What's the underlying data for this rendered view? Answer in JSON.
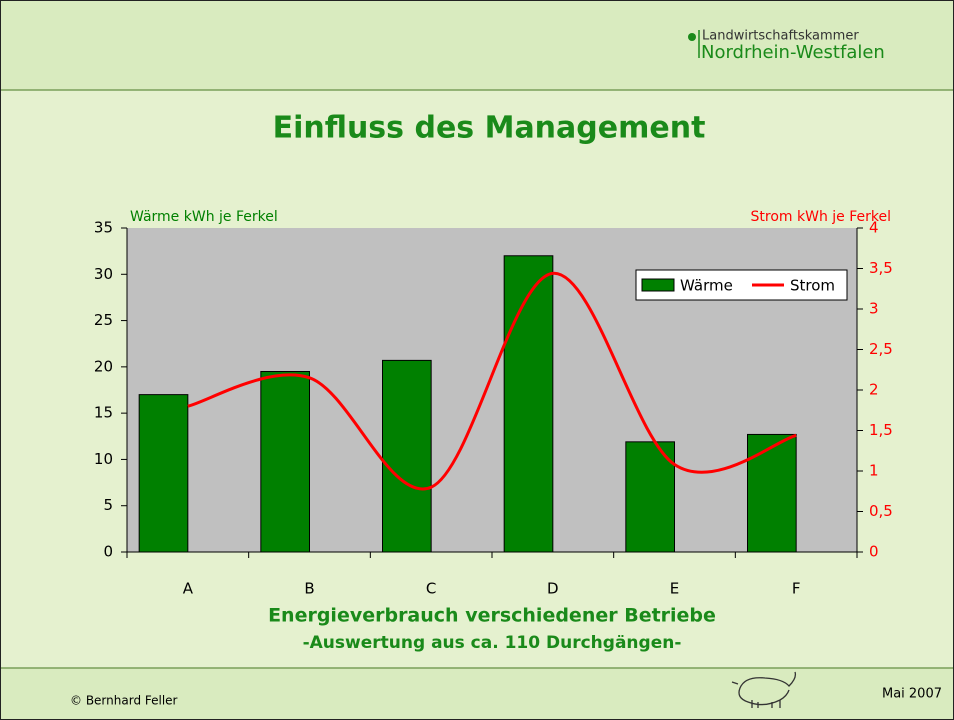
{
  "header": {
    "logo_line1": "Landwirtschaftskammer",
    "logo_line2": "Nordrhein-Westfalen"
  },
  "chart_data": {
    "type": "bar",
    "title": "Einfluss des Management",
    "y_label": "Wärme kWh je Ferkel",
    "y2_label": "Strom kWh je Ferkel",
    "x_label": "Energieverbrauch verschiedener Betriebe",
    "subtitle": "-Auswertung aus ca. 110 Durchgängen-",
    "categories": [
      "A",
      "B",
      "C",
      "D",
      "E",
      "F"
    ],
    "series": [
      {
        "name": "Wärme",
        "color": "#008000",
        "type": "bar",
        "values": [
          17,
          19.5,
          20.7,
          32,
          11.9,
          12.7
        ]
      },
      {
        "name": "Strom",
        "color": "#ff0000",
        "type": "line",
        "axis": "y2",
        "values": [
          1.8,
          2.15,
          0.8,
          3.44,
          1.08,
          1.44
        ]
      }
    ],
    "ylim": [
      0,
      35
    ],
    "yticks": [
      0,
      5,
      10,
      15,
      20,
      25,
      30,
      35
    ],
    "y2lim": [
      0,
      4
    ],
    "y2ticks": [
      0,
      {
        "value": 0.5,
        "label": "0,5"
      },
      1,
      {
        "value": 1.5,
        "label": "1,5"
      },
      2,
      {
        "value": 2.5,
        "label": "2,5"
      },
      3,
      {
        "value": 3.5,
        "label": "3,5"
      },
      4
    ],
    "plot_background": "#c0c0c0"
  },
  "footer": {
    "author": "© Bernhard Feller",
    "date": "Mai 2007"
  }
}
